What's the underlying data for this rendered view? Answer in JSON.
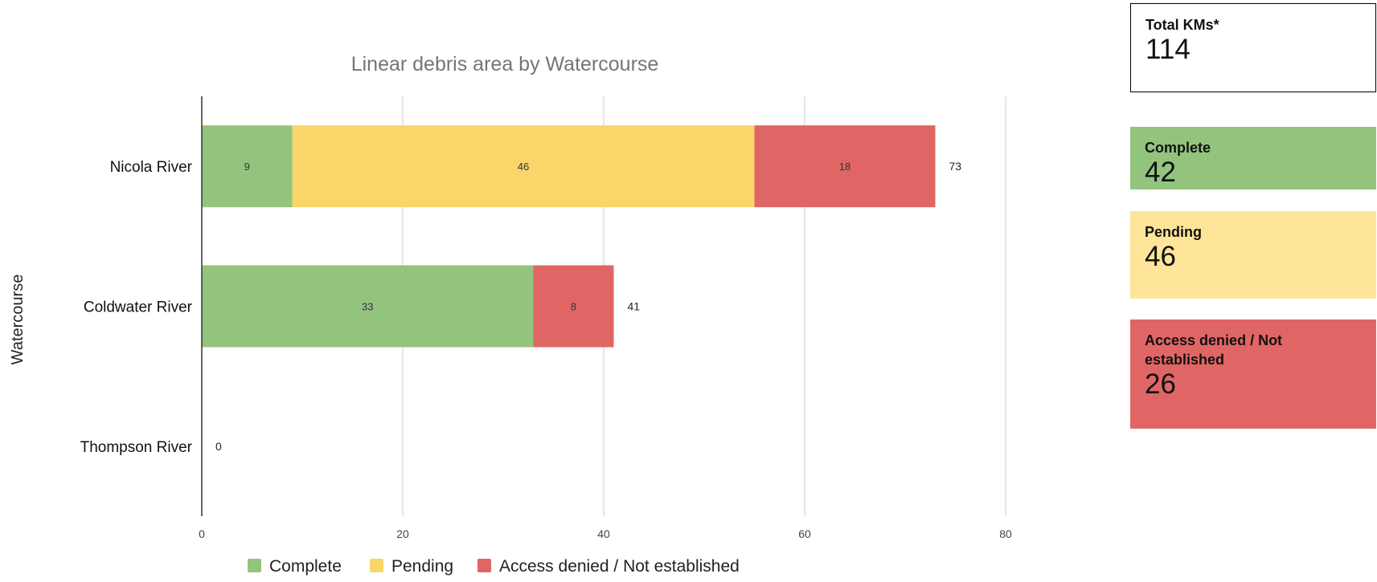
{
  "chart_data": {
    "type": "bar",
    "orientation": "horizontal",
    "stacked": true,
    "title": "Linear debris area by Watercourse",
    "xlabel": "",
    "ylabel": "Watercourse",
    "categories": [
      "Nicola River",
      "Coldwater River",
      "Thompson River"
    ],
    "series": [
      {
        "name": "Complete",
        "color": "#93c47d",
        "values": [
          9,
          33,
          0
        ]
      },
      {
        "name": "Pending",
        "color": "#fad56a",
        "values": [
          46,
          0,
          0
        ]
      },
      {
        "name": "Access denied / Not established",
        "color": "#e06666",
        "values": [
          18,
          8,
          0
        ]
      }
    ],
    "totals": [
      73,
      41,
      0
    ],
    "xlim": [
      0,
      80
    ],
    "xticks": [
      0,
      20,
      40,
      60,
      80
    ],
    "grid": true,
    "legend_position": "bottom"
  },
  "scorecards": [
    {
      "label": "Total KMs*",
      "value": "114",
      "color": "#ffffff"
    },
    {
      "label": "Complete",
      "value": "42",
      "color": "#93c47d"
    },
    {
      "label": "Pending",
      "value": "46",
      "color": "#ffe599"
    },
    {
      "label": "Access denied / Not established",
      "value": "26",
      "color": "#e06666"
    }
  ]
}
